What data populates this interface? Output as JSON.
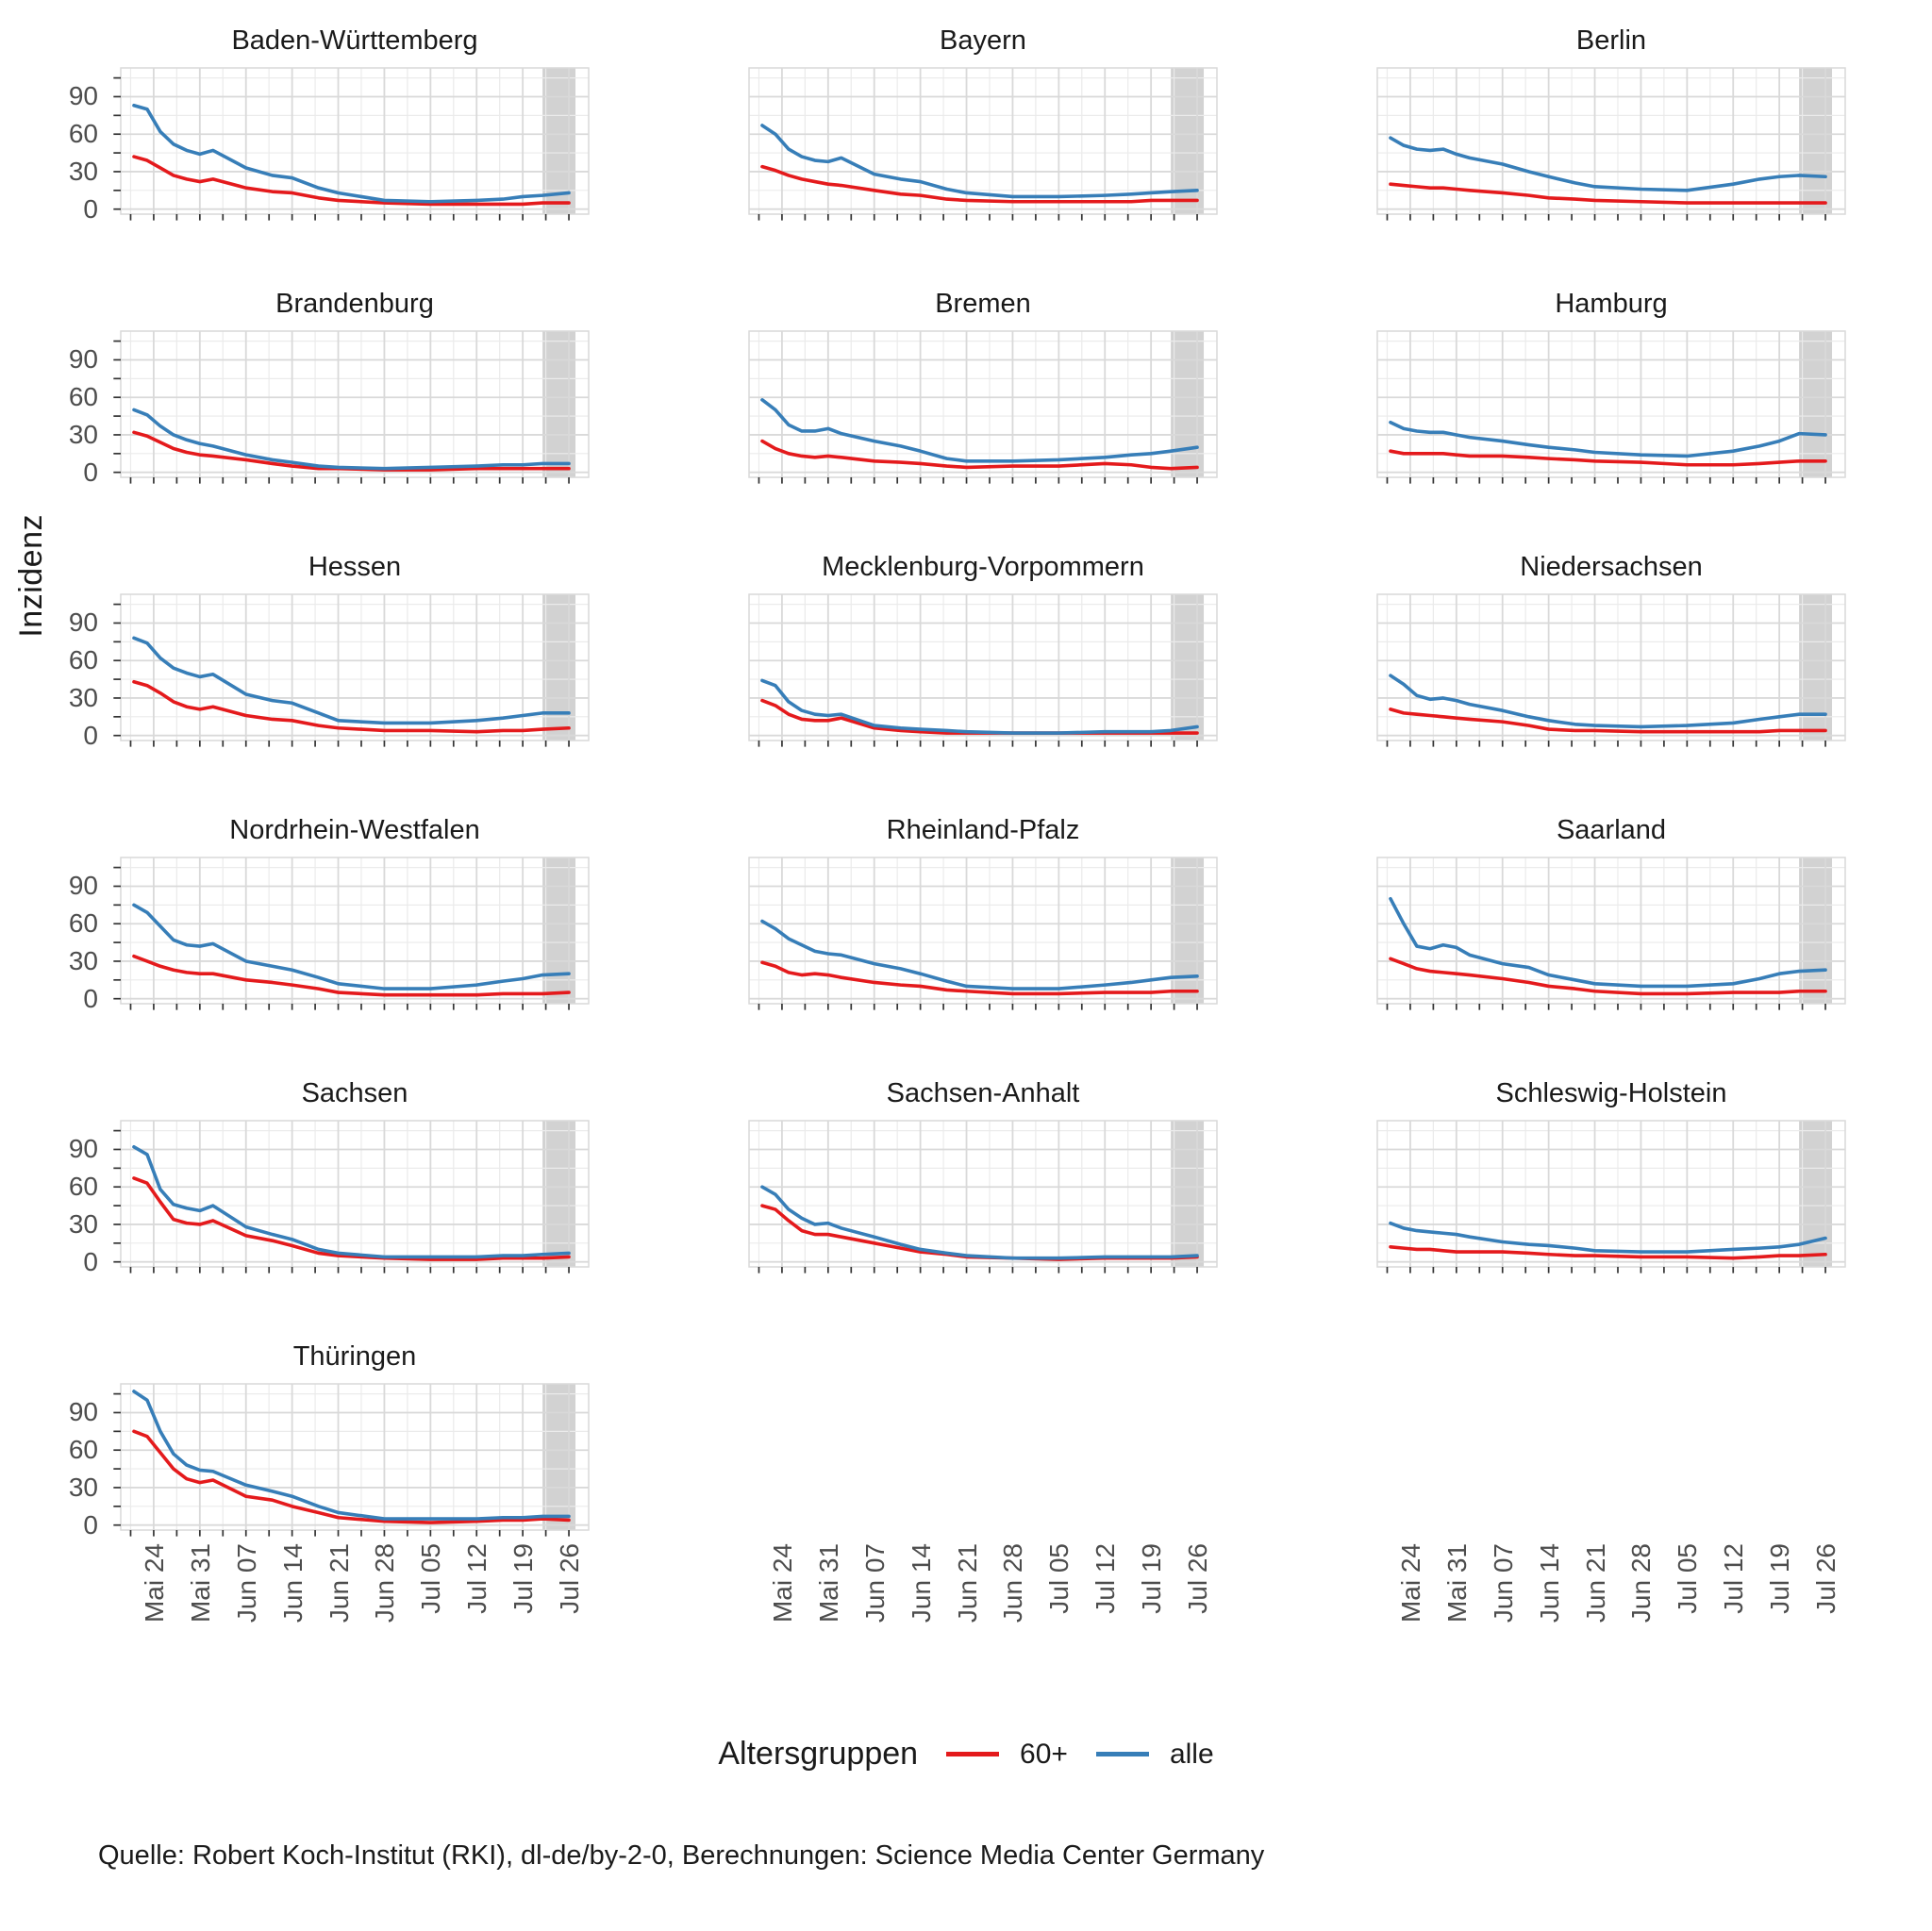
{
  "chart_data": {
    "type": "line",
    "y_label": "Inzidenz",
    "caption": "Quelle: Robert Koch-Institut (RKI), dl-de/by-2-0, Berechnungen: Science Media Center Germany",
    "legend": {
      "title": "Altersgruppen",
      "series": [
        {
          "key": "p60",
          "label": "60+",
          "color": "#e41a1c"
        },
        {
          "key": "alle",
          "label": "alle",
          "color": "#377eb8"
        }
      ]
    },
    "colors": {
      "band": "#d2d2d2",
      "grid_major": "#d9d9d9",
      "grid_minor": "#ebebeb",
      "tick": "#333333",
      "axis_text": "#4d4d4d"
    },
    "x_tick_labels": [
      "Mai 24",
      "Mai 31",
      "Jun 07",
      "Jun 14",
      "Jun 21",
      "Jun 28",
      "Jul 05",
      "Jul 12",
      "Jul 19",
      "Jul 26"
    ],
    "x_tick_days": [
      3,
      10,
      17,
      24,
      31,
      38,
      45,
      52,
      59,
      66
    ],
    "y_ticks": [
      0,
      30,
      60,
      90
    ],
    "y_minor": [
      15,
      45,
      75,
      105
    ],
    "x_domain": [
      -2,
      69
    ],
    "y_domain": [
      -4,
      113
    ],
    "band_days": [
      62,
      67
    ],
    "x_days": [
      0,
      2,
      4,
      6,
      8,
      10,
      12,
      17,
      21,
      24,
      28,
      31,
      38,
      45,
      52,
      56,
      59,
      62,
      66
    ],
    "grid_on": true,
    "legend_position": "bottom",
    "facets": [
      {
        "state": "Baden-Württemberg",
        "alle": [
          83,
          80,
          62,
          52,
          47,
          44,
          47,
          33,
          27,
          25,
          17,
          13,
          7,
          6,
          7,
          8,
          10,
          11,
          13
        ],
        "p60": [
          42,
          39,
          33,
          27,
          24,
          22,
          24,
          17,
          14,
          13,
          9,
          7,
          5,
          4,
          4,
          4,
          4,
          5,
          5
        ]
      },
      {
        "state": "Bayern",
        "alle": [
          67,
          60,
          48,
          42,
          39,
          38,
          41,
          28,
          24,
          22,
          16,
          13,
          10,
          10,
          11,
          12,
          13,
          14,
          15
        ],
        "p60": [
          34,
          31,
          27,
          24,
          22,
          20,
          19,
          15,
          12,
          11,
          8,
          7,
          6,
          6,
          6,
          6,
          7,
          7,
          7
        ]
      },
      {
        "state": "Berlin",
        "alle": [
          57,
          51,
          48,
          47,
          48,
          44,
          41,
          36,
          30,
          26,
          21,
          18,
          16,
          15,
          20,
          24,
          26,
          27,
          26
        ],
        "p60": [
          20,
          19,
          18,
          17,
          17,
          16,
          15,
          13,
          11,
          9,
          8,
          7,
          6,
          5,
          5,
          5,
          5,
          5,
          5
        ]
      },
      {
        "state": "Brandenburg",
        "alle": [
          50,
          46,
          37,
          30,
          26,
          23,
          21,
          14,
          10,
          8,
          5,
          4,
          3,
          4,
          5,
          6,
          6,
          7,
          7
        ],
        "p60": [
          32,
          29,
          24,
          19,
          16,
          14,
          13,
          10,
          7,
          5,
          3,
          3,
          2,
          2,
          3,
          3,
          3,
          3,
          3
        ]
      },
      {
        "state": "Bremen",
        "alle": [
          58,
          50,
          38,
          33,
          33,
          35,
          31,
          25,
          21,
          17,
          11,
          9,
          9,
          10,
          12,
          14,
          15,
          17,
          20
        ],
        "p60": [
          25,
          19,
          15,
          13,
          12,
          13,
          12,
          9,
          8,
          7,
          5,
          4,
          5,
          5,
          7,
          6,
          4,
          3,
          4
        ]
      },
      {
        "state": "Hamburg",
        "alle": [
          40,
          35,
          33,
          32,
          32,
          30,
          28,
          25,
          22,
          20,
          18,
          16,
          14,
          13,
          17,
          21,
          25,
          31,
          30
        ],
        "p60": [
          17,
          15,
          15,
          15,
          15,
          14,
          13,
          13,
          12,
          11,
          10,
          9,
          8,
          6,
          6,
          7,
          8,
          9,
          9
        ]
      },
      {
        "state": "Hessen",
        "alle": [
          78,
          74,
          62,
          54,
          50,
          47,
          49,
          33,
          28,
          26,
          18,
          12,
          10,
          10,
          12,
          14,
          16,
          18,
          18
        ],
        "p60": [
          43,
          40,
          34,
          27,
          23,
          21,
          23,
          16,
          13,
          12,
          8,
          6,
          4,
          4,
          3,
          4,
          4,
          5,
          6
        ]
      },
      {
        "state": "Mecklenburg-Vorpommern",
        "alle": [
          44,
          40,
          27,
          20,
          17,
          16,
          17,
          8,
          6,
          5,
          4,
          3,
          2,
          2,
          3,
          3,
          3,
          4,
          7
        ],
        "p60": [
          28,
          24,
          17,
          13,
          12,
          12,
          14,
          6,
          4,
          3,
          2,
          2,
          2,
          2,
          2,
          2,
          2,
          2,
          2
        ]
      },
      {
        "state": "Niedersachsen",
        "alle": [
          48,
          41,
          32,
          29,
          30,
          28,
          25,
          20,
          15,
          12,
          9,
          8,
          7,
          8,
          10,
          13,
          15,
          17,
          17
        ],
        "p60": [
          21,
          18,
          17,
          16,
          15,
          14,
          13,
          11,
          8,
          5,
          4,
          4,
          3,
          3,
          3,
          3,
          4,
          4,
          4
        ]
      },
      {
        "state": "Nordrhein-Westfalen",
        "alle": [
          75,
          69,
          58,
          47,
          43,
          42,
          44,
          30,
          26,
          23,
          17,
          12,
          8,
          8,
          11,
          14,
          16,
          19,
          20
        ],
        "p60": [
          34,
          30,
          26,
          23,
          21,
          20,
          20,
          15,
          13,
          11,
          8,
          5,
          3,
          3,
          3,
          4,
          4,
          4,
          5
        ]
      },
      {
        "state": "Rheinland-Pfalz",
        "alle": [
          62,
          56,
          48,
          43,
          38,
          36,
          35,
          28,
          24,
          20,
          14,
          10,
          8,
          8,
          11,
          13,
          15,
          17,
          18
        ],
        "p60": [
          29,
          26,
          21,
          19,
          20,
          19,
          17,
          13,
          11,
          10,
          7,
          6,
          4,
          4,
          5,
          5,
          5,
          6,
          6
        ]
      },
      {
        "state": "Saarland",
        "alle": [
          80,
          60,
          42,
          40,
          43,
          41,
          35,
          28,
          25,
          19,
          15,
          12,
          10,
          10,
          12,
          16,
          20,
          22,
          23
        ],
        "p60": [
          32,
          28,
          24,
          22,
          21,
          20,
          19,
          16,
          13,
          10,
          8,
          6,
          4,
          4,
          5,
          5,
          5,
          6,
          6
        ]
      },
      {
        "state": "Sachsen",
        "alle": [
          92,
          86,
          58,
          46,
          43,
          41,
          45,
          28,
          22,
          18,
          10,
          7,
          4,
          4,
          4,
          5,
          5,
          6,
          7
        ],
        "p60": [
          67,
          63,
          48,
          34,
          31,
          30,
          33,
          21,
          17,
          13,
          7,
          5,
          3,
          2,
          2,
          3,
          3,
          3,
          4
        ]
      },
      {
        "state": "Sachsen-Anhalt",
        "alle": [
          60,
          54,
          42,
          35,
          30,
          31,
          27,
          20,
          14,
          10,
          7,
          5,
          3,
          3,
          4,
          4,
          4,
          4,
          5
        ],
        "p60": [
          45,
          42,
          33,
          25,
          22,
          22,
          20,
          15,
          11,
          8,
          6,
          4,
          3,
          2,
          3,
          3,
          3,
          3,
          4
        ]
      },
      {
        "state": "Schleswig-Holstein",
        "alle": [
          31,
          27,
          25,
          24,
          23,
          22,
          20,
          16,
          14,
          13,
          11,
          9,
          8,
          8,
          10,
          11,
          12,
          14,
          19
        ],
        "p60": [
          12,
          11,
          10,
          10,
          9,
          8,
          8,
          8,
          7,
          6,
          5,
          5,
          4,
          4,
          3,
          4,
          5,
          5,
          6
        ]
      },
      {
        "state": "Thüringen",
        "alle": [
          107,
          100,
          75,
          57,
          48,
          44,
          43,
          32,
          27,
          23,
          15,
          10,
          5,
          5,
          5,
          6,
          6,
          7,
          7
        ],
        "p60": [
          75,
          71,
          58,
          45,
          37,
          34,
          36,
          23,
          20,
          15,
          10,
          6,
          3,
          2,
          3,
          4,
          4,
          5,
          4
        ]
      }
    ]
  }
}
